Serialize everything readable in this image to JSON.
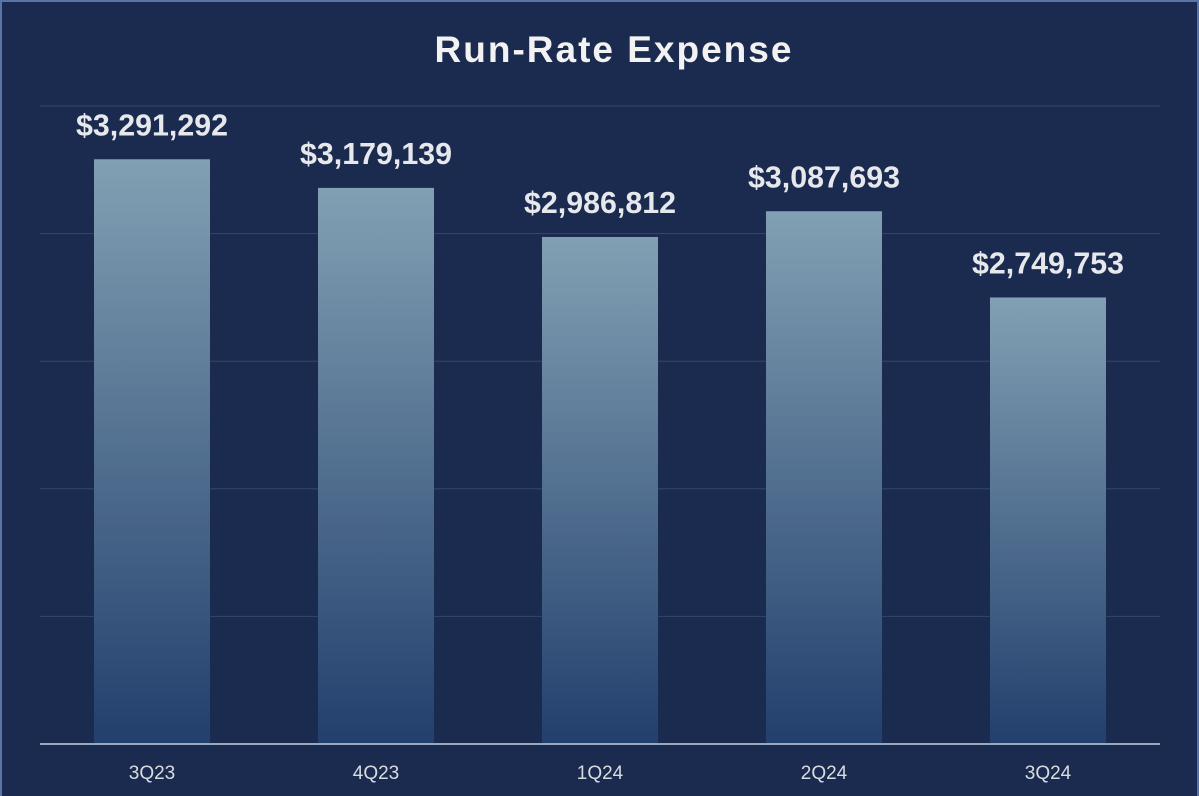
{
  "chart_data": {
    "type": "bar",
    "title": "Run-Rate Expense",
    "categories": [
      "3Q23",
      "4Q23",
      "1Q24",
      "2Q24",
      "3Q24"
    ],
    "values": [
      3291292,
      3179139,
      2986812,
      3087693,
      2749753
    ],
    "value_labels": [
      "$3,291,292",
      "$3,179,139",
      "$2,986,812",
      "$3,087,693",
      "$2,749,753"
    ],
    "color": [
      "#82a0b3",
      "#223f6d"
    ],
    "ylim": [
      1000000,
      3500000
    ],
    "yticks": [
      1000000,
      1500000,
      2000000,
      2500000,
      3000000,
      3500000
    ],
    "grid": true
  }
}
